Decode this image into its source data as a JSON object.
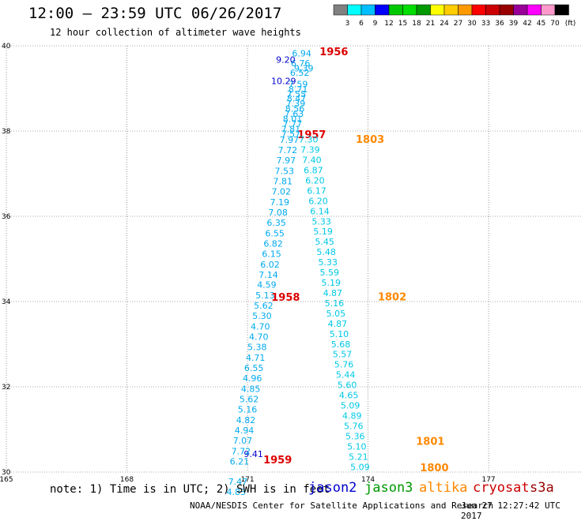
{
  "header": {
    "title": "12:00 – 23:59 UTC 06/26/2017",
    "subtitle": "12 hour collection of altimeter wave heights"
  },
  "color_scale": {
    "labels": [
      "3",
      "6",
      "9",
      "12",
      "15",
      "18",
      "21",
      "24",
      "27",
      "30",
      "33",
      "36",
      "39",
      "42",
      "45",
      "70",
      "(ft)"
    ],
    "colors": [
      "#808080",
      "#00ffff",
      "#00bfff",
      "#0000ff",
      "#00c800",
      "#00dd00",
      "#009900",
      "#ffff00",
      "#ffcc00",
      "#ff9900",
      "#ff0000",
      "#cc0000",
      "#990000",
      "#990099",
      "#ff00ff",
      "#ff99cc",
      "#000000"
    ]
  },
  "footer": {
    "note": "note: 1) Time is in UTC; 2) SWH is in feet",
    "satellites": [
      {
        "name": "jason2",
        "color": "#0000cc"
      },
      {
        "name": "jason3",
        "color": "#009900"
      },
      {
        "name": "altika",
        "color": "#ff8800"
      },
      {
        "name": "cryosat",
        "color": "#cc0000"
      },
      {
        "name": "s3a",
        "color": "#990000"
      }
    ],
    "credit": "NOAA/NESDIS Center for Satellite Applications and Research",
    "timestamp": "Jun 27 12:27:42 UTC 2017"
  },
  "chart_data": {
    "type": "scatter",
    "x_ticks": [
      "165",
      "168",
      "171",
      "174",
      "177"
    ],
    "y_ticks": [
      "30",
      "32",
      "34",
      "36",
      "38",
      "40"
    ],
    "xlim": [
      165,
      179.3
    ],
    "ylim": [
      30,
      40
    ],
    "grid": true,
    "series": [
      {
        "name": "cryosat",
        "color": "#dd0000",
        "point_color": "#00aaee",
        "points": [
          {
            "x": 172.35,
            "y": 39.75,
            "label": "6.94"
          },
          {
            "x": 172.32,
            "y": 39.52,
            "label": "6.76"
          },
          {
            "x": 172.3,
            "y": 39.3,
            "label": "6.52"
          },
          {
            "x": 172.26,
            "y": 39.03,
            "label": "7.59"
          },
          {
            "x": 172.22,
            "y": 38.8,
            "label": "7.55"
          },
          {
            "x": 172.2,
            "y": 38.57,
            "label": "7.39"
          },
          {
            "x": 172.16,
            "y": 38.33,
            "label": "7.63"
          },
          {
            "x": 172.12,
            "y": 38.1,
            "label": "7.77"
          },
          {
            "x": 172.08,
            "y": 37.86,
            "label": "7.57"
          }
        ],
        "time_labels": [
          {
            "x": 173.15,
            "y": 39.78,
            "text": "1956"
          },
          {
            "x": 172.6,
            "y": 37.83,
            "text": "1957"
          }
        ]
      },
      {
        "name": "jason2",
        "color": "#0000cc",
        "points": [
          {
            "x": 171.95,
            "y": 39.6,
            "label": "9.20"
          },
          {
            "x": 171.9,
            "y": 39.1,
            "label": "10.29"
          },
          {
            "x": 171.15,
            "y": 30.35,
            "label": "9.41"
          }
        ]
      },
      {
        "name": "s3a",
        "color": "#dd0000",
        "point_color": "#00aaee",
        "points": [
          {
            "x": 172.4,
            "y": 39.4,
            "label": "9.39"
          },
          {
            "x": 172.26,
            "y": 38.91,
            "label": "8.71"
          },
          {
            "x": 172.22,
            "y": 38.69,
            "label": "8.47"
          },
          {
            "x": 172.18,
            "y": 38.45,
            "label": "8.56"
          },
          {
            "x": 172.12,
            "y": 38.21,
            "label": "8.01"
          },
          {
            "x": 172.08,
            "y": 37.97,
            "label": "7.81"
          },
          {
            "x": 172.04,
            "y": 37.72,
            "label": "7.97"
          },
          {
            "x": 172.0,
            "y": 37.48,
            "label": "7.72"
          },
          {
            "x": 171.96,
            "y": 37.24,
            "label": "7.97"
          },
          {
            "x": 171.92,
            "y": 36.99,
            "label": "7.53"
          },
          {
            "x": 171.88,
            "y": 36.75,
            "label": "7.81"
          },
          {
            "x": 171.84,
            "y": 36.51,
            "label": "7.02"
          },
          {
            "x": 171.8,
            "y": 36.26,
            "label": "7.19"
          },
          {
            "x": 171.76,
            "y": 36.02,
            "label": "7.08"
          },
          {
            "x": 171.72,
            "y": 35.78,
            "label": "6.35"
          },
          {
            "x": 171.68,
            "y": 35.53,
            "label": "6.55"
          },
          {
            "x": 171.64,
            "y": 35.29,
            "label": "6.82"
          },
          {
            "x": 171.6,
            "y": 35.05,
            "label": "6.15"
          },
          {
            "x": 171.56,
            "y": 34.8,
            "label": "6.02"
          },
          {
            "x": 171.52,
            "y": 34.56,
            "label": "7.14"
          },
          {
            "x": 171.48,
            "y": 34.32,
            "label": "4.59"
          },
          {
            "x": 171.44,
            "y": 34.07,
            "label": "5.13"
          },
          {
            "x": 171.4,
            "y": 33.83,
            "label": "5.62"
          },
          {
            "x": 171.36,
            "y": 33.59,
            "label": "5.30"
          },
          {
            "x": 171.32,
            "y": 33.34,
            "label": "4.70"
          },
          {
            "x": 171.28,
            "y": 33.1,
            "label": "4.70"
          },
          {
            "x": 171.24,
            "y": 32.86,
            "label": "5.38"
          },
          {
            "x": 171.2,
            "y": 32.61,
            "label": "4.71"
          },
          {
            "x": 171.16,
            "y": 32.37,
            "label": "6.55"
          },
          {
            "x": 171.12,
            "y": 32.13,
            "label": "4.96"
          },
          {
            "x": 171.08,
            "y": 31.88,
            "label": "4.85"
          },
          {
            "x": 171.04,
            "y": 31.64,
            "label": "5.62"
          },
          {
            "x": 171.0,
            "y": 31.4,
            "label": "5.16"
          },
          {
            "x": 170.96,
            "y": 31.15,
            "label": "4.82"
          },
          {
            "x": 170.92,
            "y": 30.91,
            "label": "4.94"
          },
          {
            "x": 170.88,
            "y": 30.67,
            "label": "7.07"
          },
          {
            "x": 170.84,
            "y": 30.42,
            "label": "7.72"
          },
          {
            "x": 170.8,
            "y": 30.18,
            "label": "6.21"
          },
          {
            "x": 170.76,
            "y": 29.7,
            "label": "7.47"
          },
          {
            "x": 170.72,
            "y": 29.46,
            "label": "4.83"
          }
        ],
        "time_labels": [
          {
            "x": 171.95,
            "y": 34.02,
            "text": "1958"
          },
          {
            "x": 171.75,
            "y": 30.2,
            "text": "1959"
          }
        ]
      },
      {
        "name": "altika",
        "color": "#ff8800",
        "point_color": "#00c8e6",
        "points": [
          {
            "x": 172.52,
            "y": 37.73,
            "label": "7.30"
          },
          {
            "x": 172.56,
            "y": 37.49,
            "label": "7.39"
          },
          {
            "x": 172.6,
            "y": 37.25,
            "label": "7.40"
          },
          {
            "x": 172.64,
            "y": 37.01,
            "label": "6.87"
          },
          {
            "x": 172.68,
            "y": 36.77,
            "label": "6.20"
          },
          {
            "x": 172.72,
            "y": 36.53,
            "label": "6.17"
          },
          {
            "x": 172.76,
            "y": 36.29,
            "label": "6.20"
          },
          {
            "x": 172.8,
            "y": 36.05,
            "label": "6.14"
          },
          {
            "x": 172.84,
            "y": 35.81,
            "label": "5.33"
          },
          {
            "x": 172.88,
            "y": 35.57,
            "label": "5.19"
          },
          {
            "x": 172.92,
            "y": 35.33,
            "label": "5.45"
          },
          {
            "x": 172.96,
            "y": 35.09,
            "label": "5.48"
          },
          {
            "x": 173.0,
            "y": 34.85,
            "label": "5.33"
          },
          {
            "x": 173.04,
            "y": 34.61,
            "label": "5.59"
          },
          {
            "x": 173.08,
            "y": 34.37,
            "label": "5.19"
          },
          {
            "x": 173.12,
            "y": 34.13,
            "label": "4.87"
          },
          {
            "x": 173.16,
            "y": 33.89,
            "label": "5.16"
          },
          {
            "x": 173.2,
            "y": 33.65,
            "label": "5.05"
          },
          {
            "x": 173.24,
            "y": 33.41,
            "label": "4.87"
          },
          {
            "x": 173.28,
            "y": 33.17,
            "label": "5.10"
          },
          {
            "x": 173.32,
            "y": 32.93,
            "label": "5.68"
          },
          {
            "x": 173.36,
            "y": 32.69,
            "label": "5.57"
          },
          {
            "x": 173.4,
            "y": 32.45,
            "label": "5.76"
          },
          {
            "x": 173.44,
            "y": 32.21,
            "label": "5.44"
          },
          {
            "x": 173.48,
            "y": 31.97,
            "label": "5.60"
          },
          {
            "x": 173.52,
            "y": 31.73,
            "label": "4.65"
          },
          {
            "x": 173.56,
            "y": 31.49,
            "label": "5.09"
          },
          {
            "x": 173.6,
            "y": 31.25,
            "label": "4.89"
          },
          {
            "x": 173.64,
            "y": 31.01,
            "label": "5.76"
          },
          {
            "x": 173.68,
            "y": 30.77,
            "label": "5.36"
          },
          {
            "x": 173.72,
            "y": 30.53,
            "label": "5.10"
          },
          {
            "x": 173.76,
            "y": 30.29,
            "label": "5.21"
          },
          {
            "x": 173.8,
            "y": 30.05,
            "label": "5.09"
          }
        ],
        "time_labels": [
          {
            "x": 174.05,
            "y": 37.72,
            "text": "1803"
          },
          {
            "x": 174.6,
            "y": 34.03,
            "text": "1802"
          },
          {
            "x": 175.55,
            "y": 30.64,
            "text": "1801"
          },
          {
            "x": 175.65,
            "y": 30.02,
            "text": "1800"
          }
        ]
      }
    ]
  }
}
